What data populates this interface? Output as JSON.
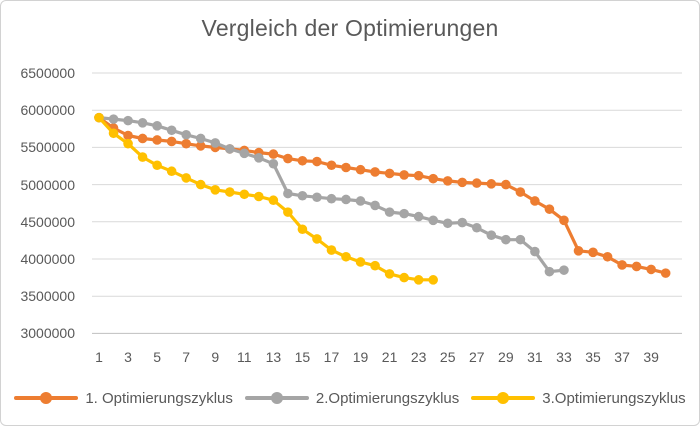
{
  "chart_data": {
    "type": "line",
    "title": "Vergleich der Optimierungen",
    "xlabel": "",
    "ylabel": "",
    "grid": "horizontal",
    "legend_position": "bottom",
    "ylim": [
      3000000,
      6500000
    ],
    "yticks": [
      6500000,
      6000000,
      5500000,
      5000000,
      4500000,
      4000000,
      3500000,
      3000000
    ],
    "ytick_labels": [
      "6500000",
      "6000000",
      "5500000",
      "5000000",
      "4500000",
      "4000000",
      "3500000",
      "3000000"
    ],
    "xticks": [
      1,
      3,
      5,
      7,
      9,
      11,
      13,
      15,
      17,
      19,
      21,
      23,
      25,
      27,
      29,
      31,
      33,
      35,
      37,
      39
    ],
    "x_start": 1,
    "series": [
      {
        "name": "1. Optimierungszyklus",
        "color": "#ED7D31",
        "values": [
          5900000,
          5760000,
          5660000,
          5620000,
          5600000,
          5580000,
          5550000,
          5520000,
          5500000,
          5480000,
          5460000,
          5430000,
          5410000,
          5350000,
          5320000,
          5310000,
          5260000,
          5230000,
          5200000,
          5170000,
          5150000,
          5130000,
          5120000,
          5080000,
          5050000,
          5030000,
          5020000,
          5010000,
          5000000,
          4900000,
          4780000,
          4670000,
          4520000,
          4110000,
          4090000,
          4030000,
          3920000,
          3900000,
          3860000,
          3810000
        ]
      },
      {
        "name": "2.Optimierungszyklus",
        "color": "#A5A5A5",
        "values": [
          5900000,
          5880000,
          5860000,
          5830000,
          5790000,
          5730000,
          5670000,
          5620000,
          5560000,
          5480000,
          5420000,
          5360000,
          5280000,
          4880000,
          4850000,
          4830000,
          4810000,
          4800000,
          4780000,
          4720000,
          4630000,
          4610000,
          4570000,
          4520000,
          4480000,
          4490000,
          4420000,
          4320000,
          4260000,
          4260000,
          4100000,
          3830000,
          3850000
        ]
      },
      {
        "name": "3.Optimierungszyklus",
        "color": "#FFC000",
        "values": [
          5900000,
          5690000,
          5550000,
          5370000,
          5260000,
          5180000,
          5090000,
          5000000,
          4930000,
          4900000,
          4870000,
          4840000,
          4790000,
          4630000,
          4400000,
          4270000,
          4120000,
          4030000,
          3960000,
          3910000,
          3800000,
          3750000,
          3720000,
          3720000
        ]
      }
    ],
    "axis_color": "#BFBFBF",
    "gridline_color": "#D9D9D9",
    "text_color": "#595959"
  }
}
